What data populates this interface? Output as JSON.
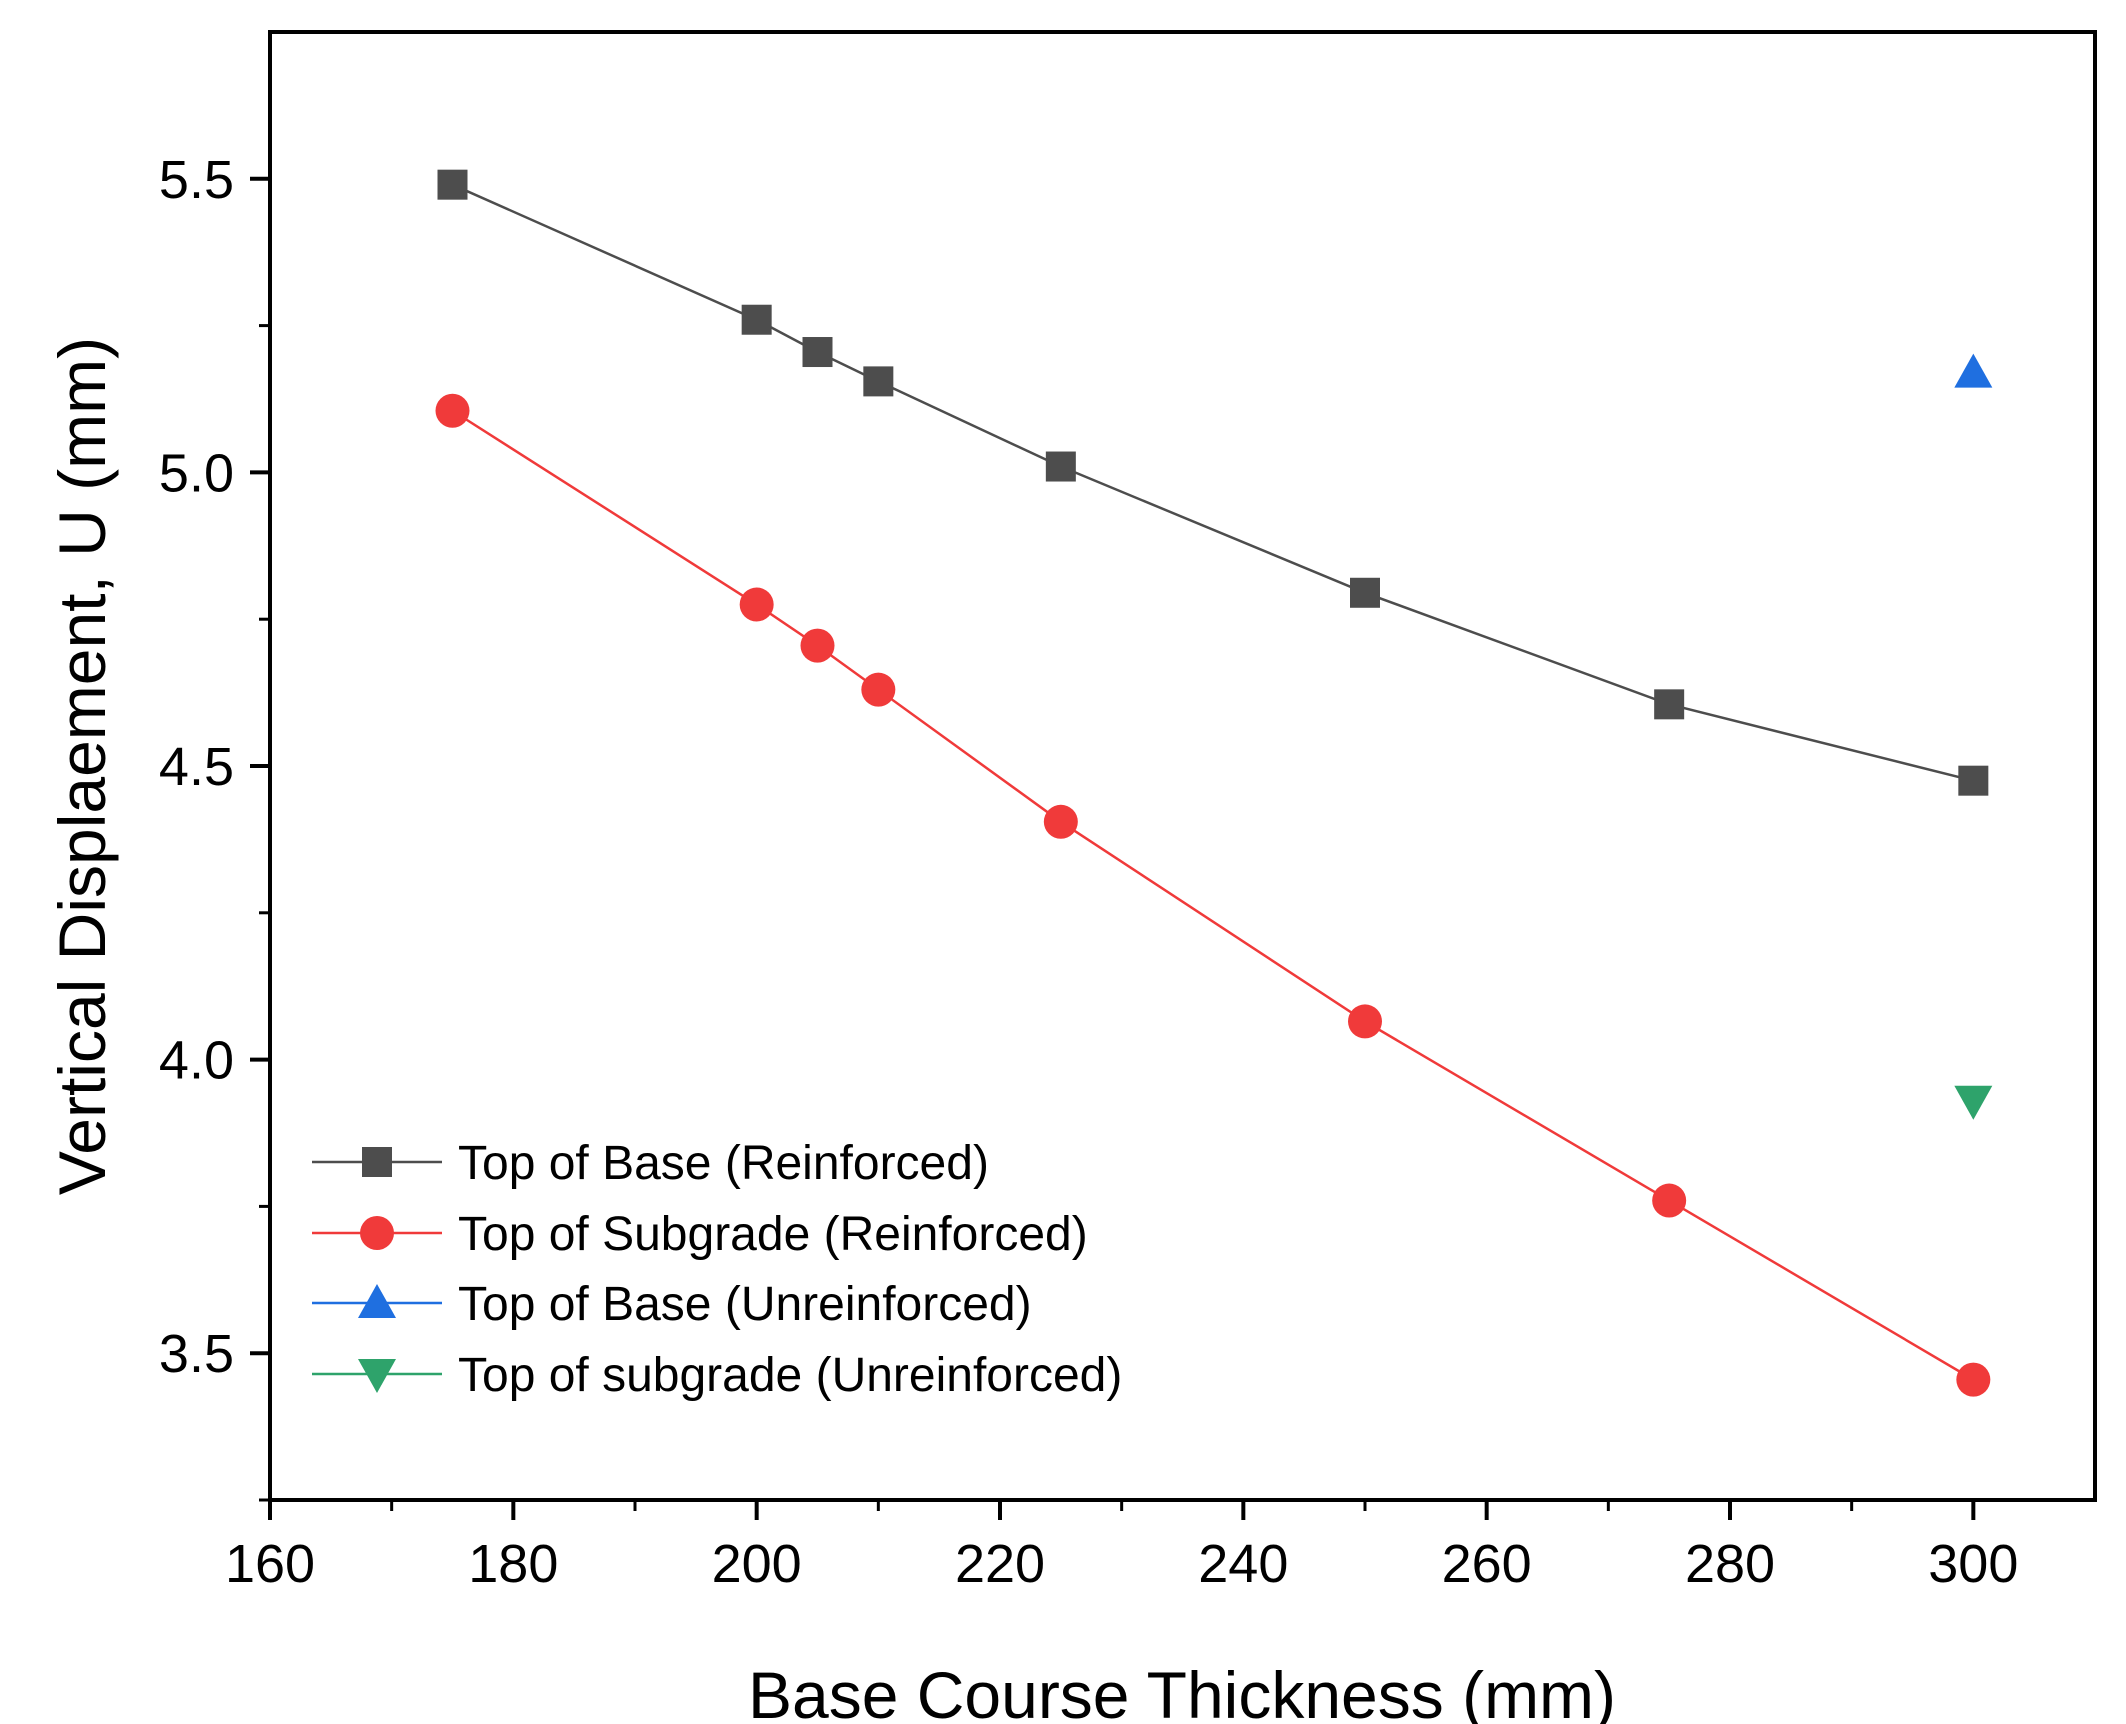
{
  "chart_data": {
    "type": "line",
    "title": "",
    "xlabel": "Base Course Thickness (mm)",
    "ylabel": "Vertical Displaement, U (mm)",
    "xlim": [
      160,
      310
    ],
    "ylim": [
      3.25,
      5.75
    ],
    "x_ticks": [
      160,
      180,
      200,
      220,
      240,
      260,
      280,
      300
    ],
    "x_tick_labels": [
      "160",
      "180",
      "200",
      "220",
      "240",
      "260",
      "280",
      "300"
    ],
    "y_ticks": [
      3.5,
      4.0,
      4.5,
      5.0,
      5.5
    ],
    "y_tick_labels": [
      "3.5",
      "4.0",
      "4.5",
      "5.0",
      "5.5"
    ],
    "grid": false,
    "legend_position": "bottom-left",
    "series": [
      {
        "name": "Top of Base (Reinforced)",
        "marker": "square",
        "color": "#4d4d4d",
        "line": true,
        "x": [
          175,
          200,
          205,
          210,
          225,
          250,
          275,
          300
        ],
        "y": [
          5.49,
          5.26,
          5.205,
          5.155,
          5.01,
          4.795,
          4.605,
          4.475
        ]
      },
      {
        "name": "Top of Subgrade (Reinforced)",
        "marker": "circle",
        "color": "#f03a3a",
        "line": true,
        "x": [
          175,
          200,
          205,
          210,
          225,
          250,
          275,
          300
        ],
        "y": [
          5.105,
          4.775,
          4.705,
          4.63,
          4.405,
          4.065,
          3.76,
          3.455
        ]
      },
      {
        "name": "Top of Base (Unreinforced)",
        "marker": "triangle-up",
        "color": "#1f6fe0",
        "line": false,
        "x": [
          300
        ],
        "y": [
          5.17
        ]
      },
      {
        "name": "Top of subgrade (Unreinforced)",
        "marker": "triangle-down",
        "color": "#2ea36b",
        "line": false,
        "x": [
          300
        ],
        "y": [
          3.93
        ]
      }
    ]
  }
}
